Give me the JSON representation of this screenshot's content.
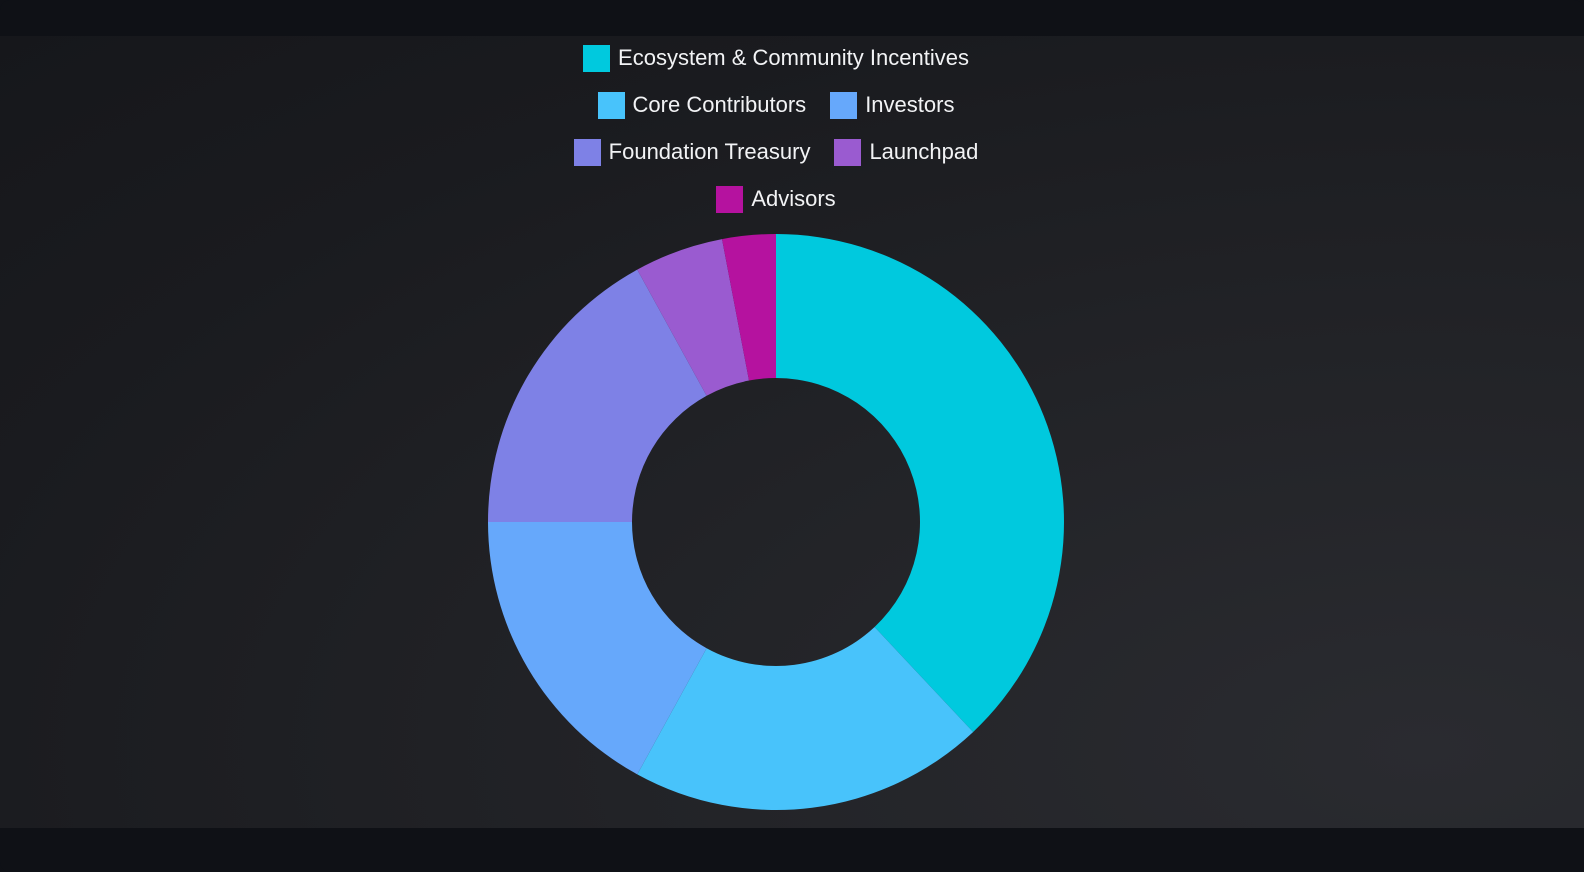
{
  "chart_data": {
    "type": "donut",
    "categories": [
      "Ecosystem & Community Incentives",
      "Core Contributors",
      "Investors",
      "Foundation Treasury",
      "Launchpad",
      "Advisors"
    ],
    "values": [
      38,
      20,
      17,
      17,
      5,
      3
    ],
    "colors": [
      "#00c9de",
      "#48c3fb",
      "#66a8fb",
      "#7e81e6",
      "#9a5bd0",
      "#b5129f"
    ],
    "legend": "top"
  }
}
